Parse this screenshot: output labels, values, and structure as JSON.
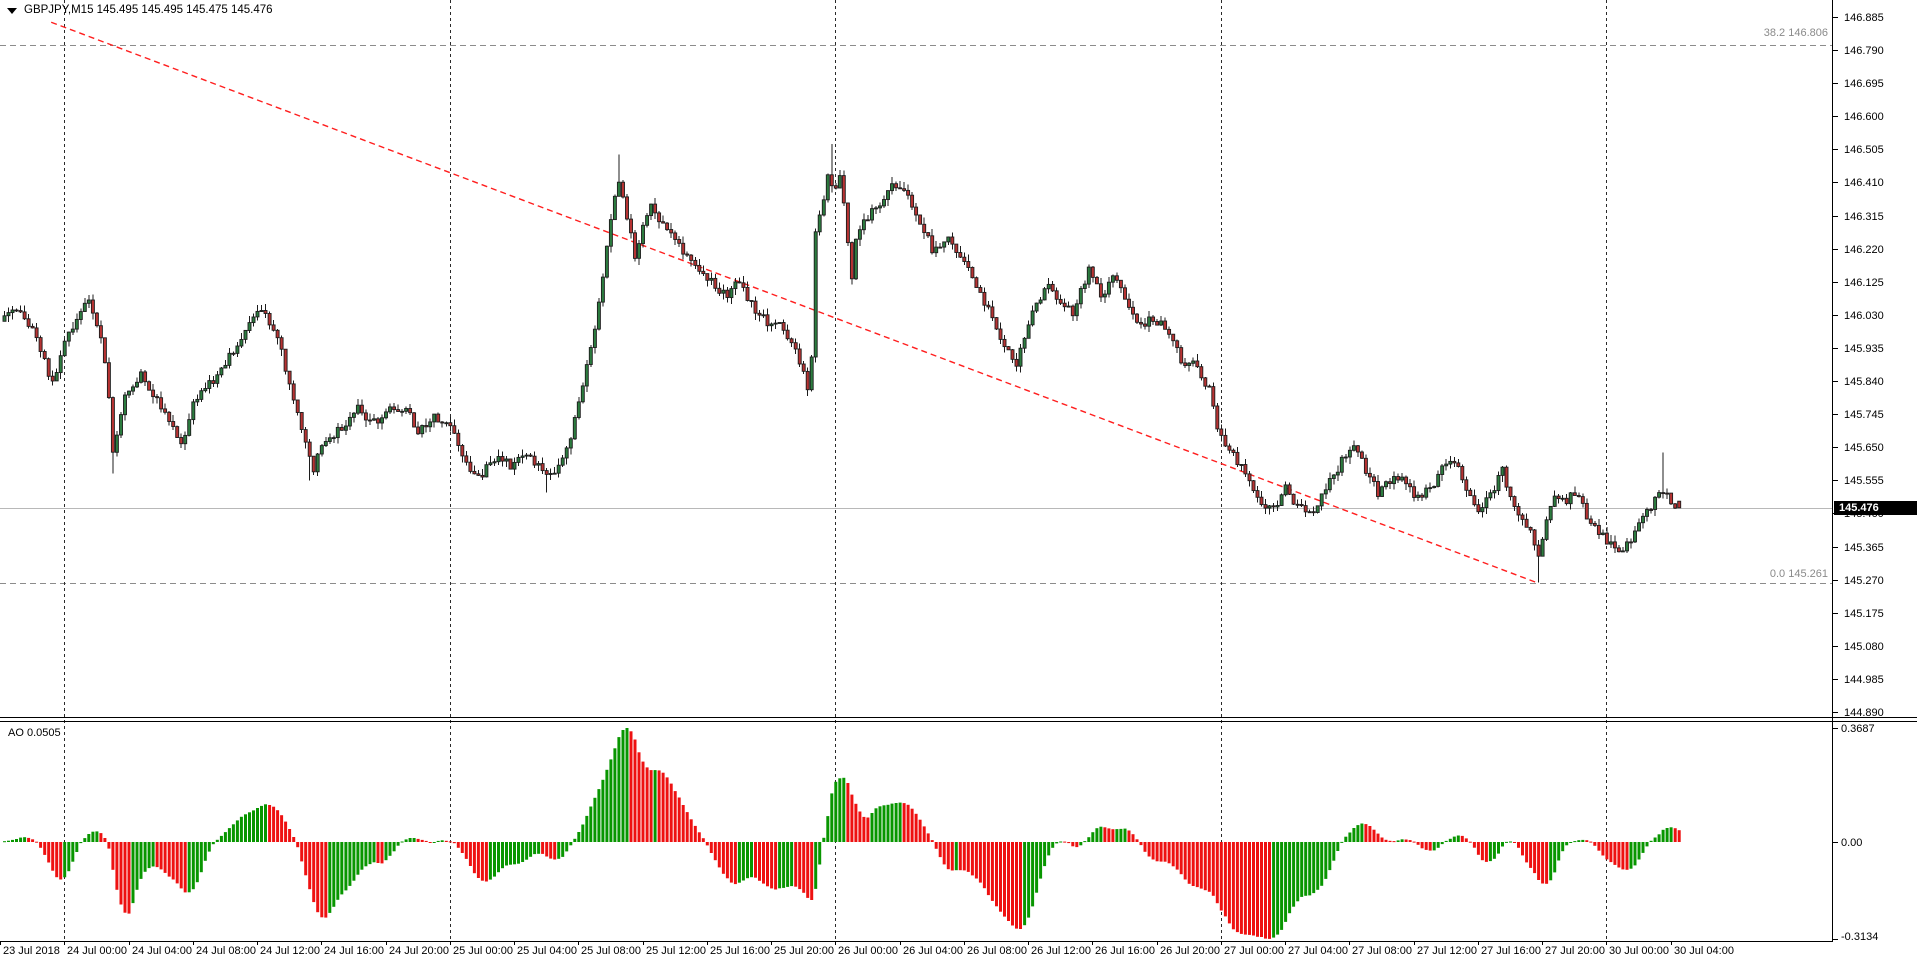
{
  "header": {
    "symbol_ohlc_title": "GBPJPY,M15 145.495 145.495 145.475 145.476",
    "dropdown_icon": "triangle-down"
  },
  "indicator_panel": {
    "label": "AO 0.0505",
    "name": "Awesome Oscillator",
    "axis_labels": [
      "0.3687",
      "0.00",
      "-0.3134"
    ]
  },
  "annotations": {
    "fib_382_label": "38.2 146.806",
    "fib_382_price": 146.806,
    "fib_0_label": "0.0 145.261",
    "fib_0_price": 145.261,
    "current_price_label": "145.476",
    "current_price": 145.476
  },
  "colors": {
    "background": "#ffffff",
    "candle_bull_fill": "#2c7c3f",
    "candle_bear_fill": "#b73333",
    "candle_outline": "#1c1c1c",
    "ao_up": "#089600",
    "ao_down": "#ee1111",
    "separator": "#2a2a2a",
    "fib_line": "#8c8c8c",
    "trendline": "#ff1e1e",
    "price_line": "#b8b8b8",
    "axis_text": "#000000",
    "price_tag_bg": "#000000",
    "price_tag_text": "#ffffff"
  },
  "chart_data": {
    "type": "candlestick",
    "symbol": "GBPJPY",
    "timeframe": "M15",
    "ohlc_current": {
      "open": 145.495,
      "high": 145.495,
      "low": 145.475,
      "close": 145.476
    },
    "price_axis": {
      "labels": [
        "146.885",
        "146.790",
        "146.695",
        "146.600",
        "146.505",
        "146.410",
        "146.315",
        "146.220",
        "146.125",
        "146.030",
        "145.935",
        "145.840",
        "145.745",
        "145.650",
        "145.555",
        "145.460",
        "145.365",
        "145.270",
        "145.175",
        "145.080",
        "144.985",
        "144.890"
      ],
      "step": 0.095,
      "ylim": [
        144.89,
        146.885
      ]
    },
    "time_axis": {
      "labels": [
        "23 Jul 2018",
        "24 Jul 00:00",
        "24 Jul 04:00",
        "24 Jul 08:00",
        "24 Jul 12:00",
        "24 Jul 16:00",
        "24 Jul 20:00",
        "25 Jul 00:00",
        "25 Jul 04:00",
        "25 Jul 08:00",
        "25 Jul 12:00",
        "25 Jul 16:00",
        "25 Jul 20:00",
        "26 Jul 00:00",
        "26 Jul 04:00",
        "26 Jul 08:00",
        "26 Jul 12:00",
        "26 Jul 16:00",
        "26 Jul 20:00",
        "27 Jul 00:00",
        "27 Jul 04:00",
        "27 Jul 08:00",
        "27 Jul 12:00",
        "27 Jul 16:00",
        "27 Jul 20:00",
        "30 Jul 00:00",
        "30 Jul 04:00"
      ],
      "day_separator_label_indices": [
        1,
        7,
        13,
        19,
        25
      ],
      "minutes_per_bar": 15
    },
    "ao_axis": {
      "max": 0.3687,
      "zero": 0.0,
      "min": -0.3134,
      "current": 0.0505
    },
    "trendline": {
      "type": "descending-dashed",
      "from_bar": 12,
      "from_price": 146.87,
      "to_bar": 382,
      "to_price": 145.261
    },
    "price_path_anchors_bar_price": [
      [
        -36,
        146.04
      ],
      [
        -16,
        146.0
      ],
      [
        -1,
        146.02
      ],
      [
        4,
        146.05
      ],
      [
        8,
        145.96
      ],
      [
        12,
        145.83
      ],
      [
        15,
        145.96
      ],
      [
        21,
        146.07
      ],
      [
        24,
        145.97
      ],
      [
        26,
        145.8
      ],
      [
        27,
        145.63
      ],
      [
        30,
        145.8
      ],
      [
        34,
        145.86
      ],
      [
        38,
        145.78
      ],
      [
        41,
        145.72
      ],
      [
        44,
        145.66
      ],
      [
        47,
        145.77
      ],
      [
        53,
        145.86
      ],
      [
        59,
        145.96
      ],
      [
        64,
        146.05
      ],
      [
        68,
        145.97
      ],
      [
        71,
        145.82
      ],
      [
        75,
        145.66
      ],
      [
        77,
        145.58
      ],
      [
        79,
        145.66
      ],
      [
        84,
        145.71
      ],
      [
        88,
        145.76
      ],
      [
        92,
        145.72
      ],
      [
        96,
        145.77
      ],
      [
        100,
        145.76
      ],
      [
        103,
        145.7
      ],
      [
        107,
        145.74
      ],
      [
        111,
        145.72
      ],
      [
        114,
        145.62
      ],
      [
        118,
        145.56
      ],
      [
        123,
        145.63
      ],
      [
        126,
        145.6
      ],
      [
        130,
        145.63
      ],
      [
        134,
        145.58
      ],
      [
        137,
        145.57
      ],
      [
        140,
        145.64
      ],
      [
        143,
        145.78
      ],
      [
        147,
        145.98
      ],
      [
        150,
        146.22
      ],
      [
        152,
        146.38
      ],
      [
        153,
        146.42
      ],
      [
        155,
        146.31
      ],
      [
        157,
        146.2
      ],
      [
        159,
        146.28
      ],
      [
        161,
        146.36
      ],
      [
        163,
        146.31
      ],
      [
        166,
        146.26
      ],
      [
        170,
        146.19
      ],
      [
        174,
        146.15
      ],
      [
        177,
        146.11
      ],
      [
        180,
        146.09
      ],
      [
        183,
        146.13
      ],
      [
        186,
        146.06
      ],
      [
        190,
        146.01
      ],
      [
        193,
        146.0
      ],
      [
        197,
        145.93
      ],
      [
        199,
        145.86
      ],
      [
        200,
        145.81
      ],
      [
        201,
        145.9
      ],
      [
        202,
        146.28
      ],
      [
        204,
        146.36
      ],
      [
        205,
        146.42
      ],
      [
        207,
        146.4
      ],
      [
        208,
        146.42
      ],
      [
        209,
        146.35
      ],
      [
        211,
        146.13
      ],
      [
        212,
        146.26
      ],
      [
        215,
        146.31
      ],
      [
        218,
        146.35
      ],
      [
        221,
        146.4
      ],
      [
        225,
        146.37
      ],
      [
        228,
        146.3
      ],
      [
        231,
        146.22
      ],
      [
        235,
        146.25
      ],
      [
        239,
        146.18
      ],
      [
        243,
        146.1
      ],
      [
        247,
        145.98
      ],
      [
        252,
        145.89
      ],
      [
        256,
        146.05
      ],
      [
        260,
        146.11
      ],
      [
        263,
        146.07
      ],
      [
        266,
        146.03
      ],
      [
        270,
        146.16
      ],
      [
        273,
        146.08
      ],
      [
        276,
        146.14
      ],
      [
        280,
        146.05
      ],
      [
        283,
        146.0
      ],
      [
        286,
        146.02
      ],
      [
        289,
        146.0
      ],
      [
        293,
        145.9
      ],
      [
        296,
        145.89
      ],
      [
        300,
        145.82
      ],
      [
        302,
        145.7
      ],
      [
        304,
        145.66
      ],
      [
        306,
        145.63
      ],
      [
        310,
        145.55
      ],
      [
        313,
        145.48
      ],
      [
        316,
        145.47
      ],
      [
        319,
        145.53
      ],
      [
        322,
        145.48
      ],
      [
        326,
        145.46
      ],
      [
        329,
        145.53
      ],
      [
        333,
        145.61
      ],
      [
        336,
        145.66
      ],
      [
        339,
        145.58
      ],
      [
        342,
        145.52
      ],
      [
        346,
        145.56
      ],
      [
        349,
        145.55
      ],
      [
        352,
        145.5
      ],
      [
        355,
        145.53
      ],
      [
        358,
        145.59
      ],
      [
        361,
        145.61
      ],
      [
        364,
        145.53
      ],
      [
        367,
        145.46
      ],
      [
        370,
        145.51
      ],
      [
        373,
        145.58
      ],
      [
        375,
        145.51
      ],
      [
        377,
        145.46
      ],
      [
        380,
        145.41
      ],
      [
        382,
        145.34
      ],
      [
        384,
        145.44
      ],
      [
        386,
        145.51
      ],
      [
        389,
        145.5
      ],
      [
        392,
        145.52
      ],
      [
        394,
        145.45
      ],
      [
        397,
        145.41
      ],
      [
        399,
        145.38
      ],
      [
        402,
        145.35
      ],
      [
        404,
        145.37
      ],
      [
        407,
        145.43
      ],
      [
        410,
        145.48
      ],
      [
        412,
        145.51
      ],
      [
        414,
        145.53
      ],
      [
        415,
        145.5
      ],
      [
        417,
        145.476
      ]
    ],
    "wick_extremes": [
      {
        "bar": 27,
        "low": 145.575
      },
      {
        "bar": 76,
        "low": 145.555
      },
      {
        "bar": 135,
        "low": 145.52
      },
      {
        "bar": 153,
        "high": 146.49
      },
      {
        "bar": 206,
        "high": 146.52
      },
      {
        "bar": 382,
        "low": 145.262
      },
      {
        "bar": 413,
        "high": 145.635
      }
    ]
  }
}
